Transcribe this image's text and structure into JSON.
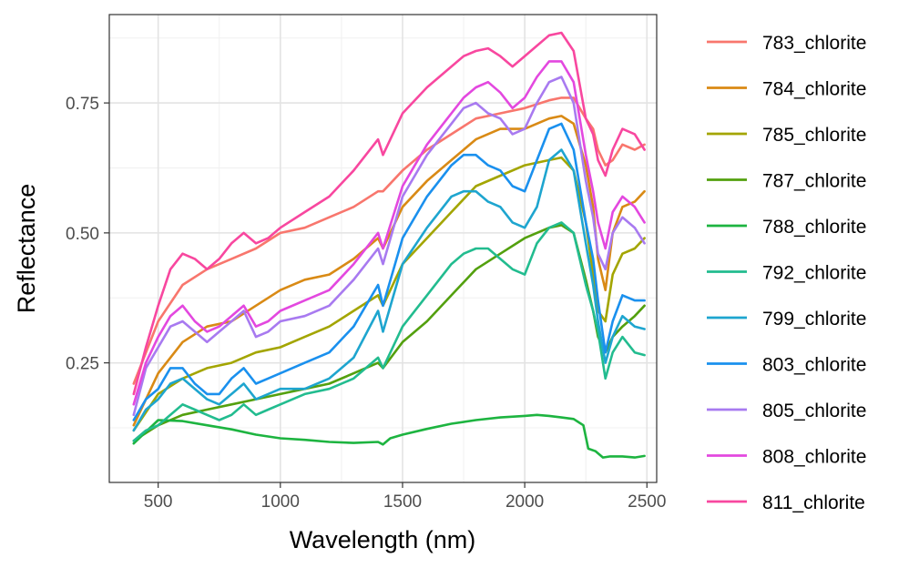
{
  "chart_data": {
    "type": "line",
    "xlabel": "Wavelength (nm)",
    "ylabel": "Reflectance",
    "xlim": [
      300,
      2540
    ],
    "ylim": [
      0.02,
      0.92
    ],
    "x_ticks": [
      500,
      1000,
      1500,
      2000,
      2500
    ],
    "y_ticks": [
      0.25,
      0.5,
      0.75
    ],
    "x_tick_labels": [
      "500",
      "1000",
      "1500",
      "2000",
      "2500"
    ],
    "y_tick_labels": [
      "0.25",
      "0.50",
      "0.75"
    ],
    "grid": true,
    "legend_position": "right",
    "series": [
      {
        "name": "783_chlorite",
        "color": "#F8766D",
        "x": [
          400,
          500,
          600,
          700,
          800,
          900,
          1000,
          1100,
          1200,
          1300,
          1400,
          1420,
          1500,
          1600,
          1700,
          1800,
          1900,
          2000,
          2100,
          2150,
          2200,
          2250,
          2280,
          2300,
          2330,
          2360,
          2400,
          2450,
          2490
        ],
        "y": [
          0.21,
          0.33,
          0.4,
          0.43,
          0.45,
          0.47,
          0.5,
          0.51,
          0.53,
          0.55,
          0.58,
          0.58,
          0.62,
          0.66,
          0.69,
          0.72,
          0.73,
          0.74,
          0.755,
          0.76,
          0.76,
          0.72,
          0.7,
          0.66,
          0.63,
          0.64,
          0.67,
          0.66,
          0.67
        ]
      },
      {
        "name": "784_chlorite",
        "color": "#D98A15",
        "x": [
          400,
          500,
          600,
          700,
          800,
          900,
          1000,
          1100,
          1200,
          1300,
          1400,
          1420,
          1500,
          1600,
          1700,
          1800,
          1900,
          2000,
          2100,
          2150,
          2200,
          2250,
          2280,
          2300,
          2330,
          2360,
          2400,
          2450,
          2490
        ],
        "y": [
          0.13,
          0.23,
          0.29,
          0.32,
          0.33,
          0.36,
          0.39,
          0.41,
          0.42,
          0.45,
          0.49,
          0.47,
          0.55,
          0.6,
          0.64,
          0.68,
          0.7,
          0.7,
          0.72,
          0.725,
          0.71,
          0.63,
          0.55,
          0.45,
          0.39,
          0.5,
          0.55,
          0.56,
          0.58
        ]
      },
      {
        "name": "785_chlorite",
        "color": "#A3A500",
        "x": [
          400,
          500,
          600,
          700,
          800,
          900,
          1000,
          1100,
          1200,
          1300,
          1400,
          1420,
          1500,
          1600,
          1700,
          1800,
          1900,
          2000,
          2100,
          2150,
          2200,
          2250,
          2280,
          2300,
          2330,
          2360,
          2400,
          2450,
          2490
        ],
        "y": [
          0.12,
          0.19,
          0.22,
          0.24,
          0.25,
          0.27,
          0.28,
          0.3,
          0.32,
          0.35,
          0.38,
          0.36,
          0.44,
          0.49,
          0.54,
          0.59,
          0.61,
          0.63,
          0.64,
          0.645,
          0.62,
          0.52,
          0.42,
          0.35,
          0.33,
          0.42,
          0.46,
          0.47,
          0.49
        ]
      },
      {
        "name": "787_chlorite",
        "color": "#53A00E",
        "x": [
          400,
          500,
          600,
          700,
          800,
          900,
          1000,
          1100,
          1200,
          1300,
          1400,
          1420,
          1500,
          1600,
          1700,
          1800,
          1900,
          2000,
          2100,
          2150,
          2200,
          2250,
          2280,
          2300,
          2330,
          2360,
          2400,
          2450,
          2490
        ],
        "y": [
          0.1,
          0.13,
          0.15,
          0.16,
          0.17,
          0.18,
          0.19,
          0.2,
          0.21,
          0.23,
          0.25,
          0.24,
          0.29,
          0.33,
          0.38,
          0.43,
          0.46,
          0.49,
          0.51,
          0.515,
          0.5,
          0.41,
          0.35,
          0.3,
          0.27,
          0.3,
          0.32,
          0.34,
          0.36
        ]
      },
      {
        "name": "788_chlorite",
        "color": "#1DB440",
        "x": [
          400,
          500,
          600,
          700,
          800,
          900,
          1000,
          1100,
          1200,
          1300,
          1400,
          1420,
          1450,
          1500,
          1600,
          1700,
          1800,
          1900,
          2000,
          2050,
          2100,
          2150,
          2200,
          2240,
          2260,
          2290,
          2320,
          2350,
          2400,
          2450,
          2490
        ],
        "y": [
          0.095,
          0.14,
          0.138,
          0.13,
          0.122,
          0.112,
          0.105,
          0.102,
          0.098,
          0.096,
          0.098,
          0.093,
          0.105,
          0.112,
          0.123,
          0.133,
          0.14,
          0.145,
          0.148,
          0.15,
          0.148,
          0.145,
          0.142,
          0.13,
          0.085,
          0.08,
          0.068,
          0.07,
          0.07,
          0.068,
          0.071
        ]
      },
      {
        "name": "792_chlorite",
        "color": "#22BC8F",
        "x": [
          400,
          450,
          500,
          550,
          600,
          650,
          700,
          750,
          800,
          850,
          900,
          950,
          1000,
          1100,
          1200,
          1300,
          1400,
          1420,
          1500,
          1600,
          1700,
          1750,
          1800,
          1850,
          1900,
          1950,
          2000,
          2050,
          2100,
          2150,
          2200,
          2250,
          2280,
          2300,
          2330,
          2360,
          2400,
          2450,
          2490
        ],
        "y": [
          0.1,
          0.12,
          0.13,
          0.15,
          0.17,
          0.16,
          0.15,
          0.14,
          0.15,
          0.17,
          0.15,
          0.16,
          0.17,
          0.19,
          0.2,
          0.22,
          0.26,
          0.24,
          0.32,
          0.38,
          0.44,
          0.46,
          0.47,
          0.47,
          0.45,
          0.43,
          0.42,
          0.48,
          0.51,
          0.52,
          0.5,
          0.4,
          0.35,
          0.31,
          0.22,
          0.27,
          0.3,
          0.27,
          0.265
        ]
      },
      {
        "name": "799_chlorite",
        "color": "#1EA5CF",
        "x": [
          400,
          450,
          500,
          550,
          600,
          650,
          700,
          750,
          800,
          850,
          900,
          950,
          1000,
          1100,
          1200,
          1300,
          1400,
          1420,
          1500,
          1600,
          1700,
          1750,
          1800,
          1850,
          1900,
          1950,
          2000,
          2050,
          2100,
          2150,
          2200,
          2250,
          2280,
          2300,
          2330,
          2360,
          2400,
          2450,
          2490
        ],
        "y": [
          0.12,
          0.16,
          0.18,
          0.21,
          0.22,
          0.2,
          0.18,
          0.17,
          0.19,
          0.21,
          0.18,
          0.19,
          0.2,
          0.2,
          0.22,
          0.26,
          0.35,
          0.31,
          0.44,
          0.51,
          0.57,
          0.58,
          0.58,
          0.56,
          0.55,
          0.52,
          0.51,
          0.55,
          0.64,
          0.66,
          0.62,
          0.48,
          0.4,
          0.33,
          0.25,
          0.3,
          0.34,
          0.32,
          0.315
        ]
      },
      {
        "name": "803_chlorite",
        "color": "#1A90EE",
        "x": [
          400,
          450,
          500,
          550,
          600,
          650,
          700,
          750,
          800,
          850,
          900,
          950,
          1000,
          1100,
          1200,
          1300,
          1400,
          1420,
          1500,
          1600,
          1700,
          1750,
          1800,
          1850,
          1900,
          1950,
          2000,
          2050,
          2100,
          2150,
          2200,
          2250,
          2280,
          2300,
          2330,
          2360,
          2400,
          2450,
          2490
        ],
        "y": [
          0.14,
          0.18,
          0.2,
          0.24,
          0.24,
          0.21,
          0.19,
          0.19,
          0.22,
          0.24,
          0.21,
          0.22,
          0.23,
          0.25,
          0.27,
          0.32,
          0.4,
          0.36,
          0.49,
          0.57,
          0.63,
          0.65,
          0.65,
          0.63,
          0.62,
          0.59,
          0.58,
          0.64,
          0.7,
          0.71,
          0.66,
          0.52,
          0.45,
          0.37,
          0.27,
          0.33,
          0.38,
          0.37,
          0.37
        ]
      },
      {
        "name": "805_chlorite",
        "color": "#A87AF0",
        "x": [
          400,
          450,
          500,
          550,
          600,
          650,
          700,
          750,
          800,
          850,
          900,
          950,
          1000,
          1100,
          1200,
          1300,
          1400,
          1420,
          1500,
          1600,
          1700,
          1750,
          1800,
          1850,
          1900,
          1950,
          2000,
          2050,
          2100,
          2150,
          2200,
          2250,
          2280,
          2300,
          2330,
          2360,
          2400,
          2450,
          2490
        ],
        "y": [
          0.15,
          0.24,
          0.28,
          0.32,
          0.33,
          0.31,
          0.29,
          0.31,
          0.33,
          0.35,
          0.3,
          0.31,
          0.33,
          0.34,
          0.36,
          0.41,
          0.47,
          0.44,
          0.57,
          0.65,
          0.71,
          0.74,
          0.75,
          0.73,
          0.72,
          0.69,
          0.7,
          0.75,
          0.79,
          0.8,
          0.75,
          0.6,
          0.53,
          0.46,
          0.43,
          0.5,
          0.53,
          0.51,
          0.48
        ]
      },
      {
        "name": "808_chlorite",
        "color": "#E348DF",
        "x": [
          400,
          450,
          500,
          550,
          600,
          650,
          700,
          750,
          800,
          850,
          900,
          950,
          1000,
          1100,
          1200,
          1300,
          1400,
          1420,
          1500,
          1600,
          1700,
          1750,
          1800,
          1850,
          1900,
          1950,
          2000,
          2050,
          2100,
          2150,
          2200,
          2250,
          2280,
          2300,
          2330,
          2360,
          2400,
          2450,
          2490
        ],
        "y": [
          0.17,
          0.25,
          0.3,
          0.34,
          0.36,
          0.33,
          0.31,
          0.32,
          0.34,
          0.36,
          0.32,
          0.33,
          0.35,
          0.37,
          0.39,
          0.44,
          0.5,
          0.47,
          0.59,
          0.67,
          0.73,
          0.76,
          0.78,
          0.79,
          0.77,
          0.74,
          0.76,
          0.8,
          0.83,
          0.83,
          0.79,
          0.65,
          0.58,
          0.52,
          0.47,
          0.54,
          0.57,
          0.55,
          0.52
        ]
      },
      {
        "name": "811_chlorite",
        "color": "#F8479F",
        "x": [
          400,
          450,
          500,
          550,
          600,
          650,
          700,
          750,
          800,
          850,
          900,
          950,
          1000,
          1100,
          1200,
          1300,
          1400,
          1420,
          1500,
          1600,
          1700,
          1750,
          1800,
          1850,
          1900,
          1950,
          2000,
          2050,
          2100,
          2150,
          2200,
          2250,
          2280,
          2300,
          2330,
          2360,
          2400,
          2450,
          2490
        ],
        "y": [
          0.19,
          0.28,
          0.36,
          0.43,
          0.46,
          0.45,
          0.43,
          0.45,
          0.48,
          0.5,
          0.48,
          0.49,
          0.51,
          0.54,
          0.57,
          0.62,
          0.68,
          0.65,
          0.73,
          0.78,
          0.82,
          0.84,
          0.85,
          0.855,
          0.84,
          0.82,
          0.84,
          0.86,
          0.88,
          0.885,
          0.85,
          0.72,
          0.69,
          0.64,
          0.61,
          0.66,
          0.7,
          0.69,
          0.66
        ]
      }
    ]
  }
}
